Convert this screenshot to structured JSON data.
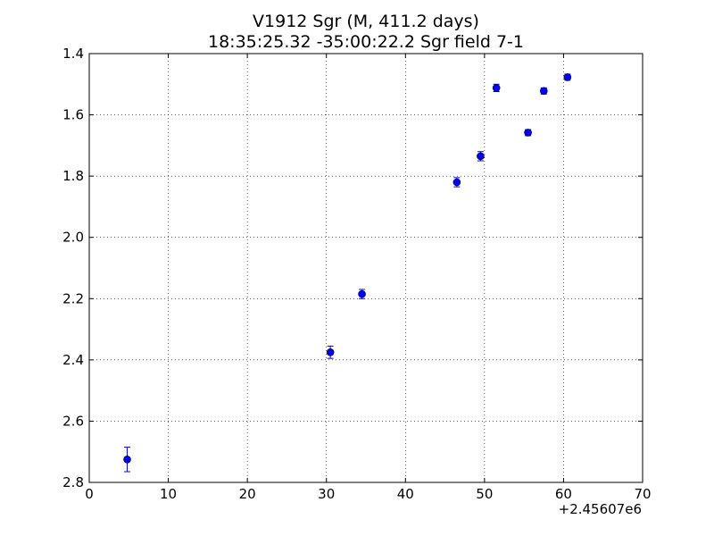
{
  "chart_data": {
    "type": "scatter",
    "title_lines": [
      "V1912 Sgr  (M, 411.2 days)",
      "18:35:25.32 -35:00:22.2 Sgr field 7-1"
    ],
    "xlabel": "",
    "ylabel": "",
    "x_offset_label": "+2.45607e6",
    "xlim": [
      0,
      70
    ],
    "ylim": [
      1.4,
      2.8
    ],
    "y_inverted": true,
    "grid": true,
    "grid_style": "dotted",
    "x_ticks": [
      0,
      10,
      20,
      30,
      40,
      50,
      60,
      70
    ],
    "x_tick_labels": [
      "0",
      "10",
      "20",
      "30",
      "40",
      "50",
      "60",
      "70"
    ],
    "y_ticks": [
      1.4,
      1.6,
      1.8,
      2.0,
      2.2,
      2.4,
      2.6,
      2.8
    ],
    "y_tick_labels": [
      "1.4",
      "1.6",
      "1.8",
      "2.0",
      "2.2",
      "2.4",
      "2.6",
      "2.8"
    ],
    "marker_color": "#0000ff",
    "points": [
      {
        "x": 4.8,
        "y": 2.725,
        "err": 0.04
      },
      {
        "x": 30.5,
        "y": 2.375,
        "err": 0.02
      },
      {
        "x": 34.5,
        "y": 2.185,
        "err": 0.015
      },
      {
        "x": 46.5,
        "y": 1.82,
        "err": 0.015
      },
      {
        "x": 49.5,
        "y": 1.735,
        "err": 0.015
      },
      {
        "x": 51.5,
        "y": 1.512,
        "err": 0.012
      },
      {
        "x": 55.5,
        "y": 1.658,
        "err": 0.01
      },
      {
        "x": 57.5,
        "y": 1.522,
        "err": 0.01
      },
      {
        "x": 60.5,
        "y": 1.477,
        "err": 0.01
      }
    ]
  }
}
